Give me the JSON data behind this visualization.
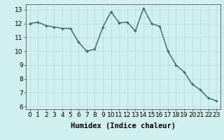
{
  "x": [
    0,
    1,
    2,
    3,
    4,
    5,
    6,
    7,
    8,
    9,
    10,
    11,
    12,
    13,
    14,
    15,
    16,
    17,
    18,
    19,
    20,
    21,
    22,
    23
  ],
  "y": [
    12.0,
    12.1,
    11.85,
    11.75,
    11.65,
    11.65,
    10.65,
    10.0,
    10.15,
    11.75,
    12.85,
    12.05,
    12.1,
    11.45,
    13.1,
    12.0,
    11.8,
    10.0,
    9.0,
    8.5,
    7.6,
    7.2,
    6.6,
    6.4
  ],
  "line_color": "#2d6b5e",
  "marker": "+",
  "bg_color": "#d0efed",
  "grid_color": "#c0dedd",
  "xlabel": "Humidex (Indice chaleur)",
  "ylim": [
    5.8,
    13.4
  ],
  "xlim": [
    -0.5,
    23.5
  ],
  "yticks": [
    6,
    7,
    8,
    9,
    10,
    11,
    12,
    13
  ],
  "xticks": [
    0,
    1,
    2,
    3,
    4,
    5,
    6,
    7,
    8,
    9,
    10,
    11,
    12,
    13,
    14,
    15,
    16,
    17,
    18,
    19,
    20,
    21,
    22,
    23
  ],
  "tick_label_fontsize": 6.5,
  "xlabel_fontsize": 7.5,
  "line_width": 1.0,
  "marker_size": 3.5
}
